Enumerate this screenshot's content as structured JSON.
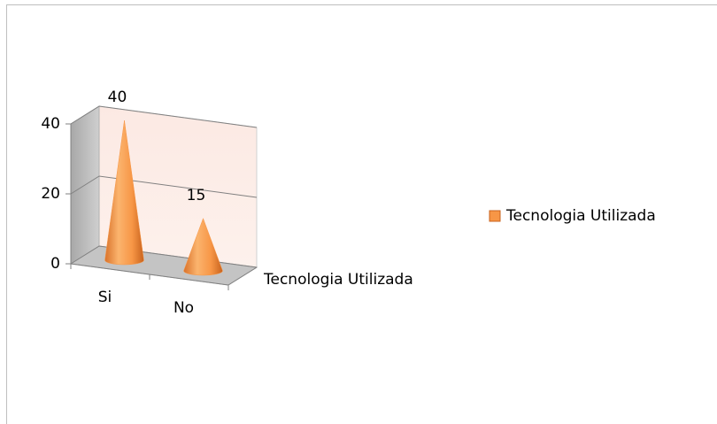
{
  "chart_data": {
    "type": "cone",
    "categories": [
      "Si",
      "No"
    ],
    "series": [
      {
        "name": "Tecnologia Utilizada",
        "color": "#f79646",
        "values": [
          40,
          15
        ]
      }
    ],
    "depth_label": "Tecnologia Utilizada",
    "ylim": [
      0,
      40
    ],
    "yticks": [
      0,
      20,
      40
    ],
    "grid": true,
    "legend": "right"
  }
}
